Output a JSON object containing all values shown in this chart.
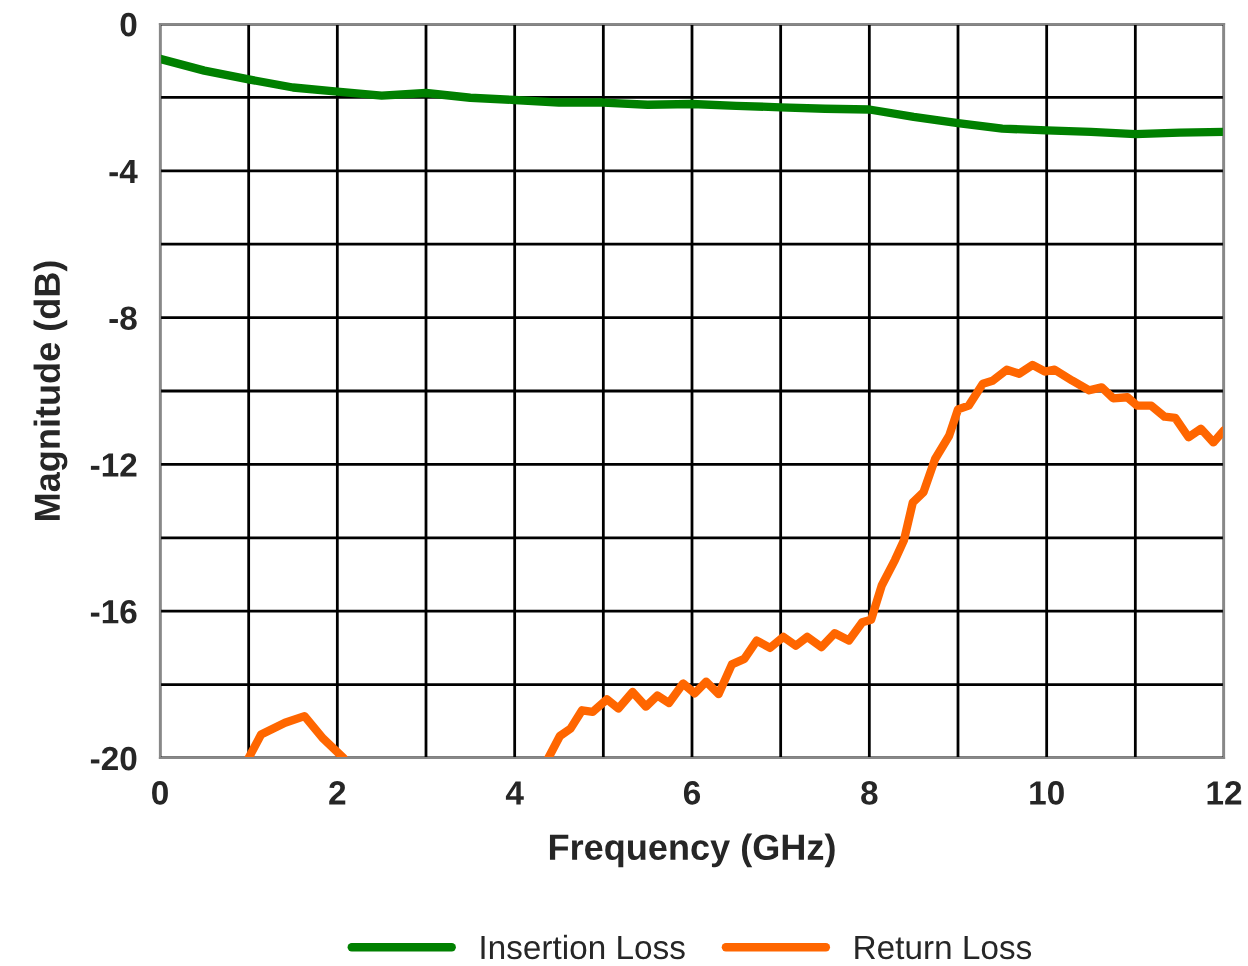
{
  "chart_data": {
    "type": "line",
    "xlabel": "Frequency (GHz)",
    "ylabel": "Magnitude (dB)",
    "xlim": [
      0,
      12
    ],
    "ylim": [
      -20,
      0
    ],
    "xticks": [
      0,
      {
        "value": 1,
        "label": null
      },
      2,
      {
        "value": 3,
        "label": null
      },
      4,
      {
        "value": 5,
        "label": null
      },
      6,
      {
        "value": 7,
        "label": null
      },
      8,
      {
        "value": 9,
        "label": null
      },
      10,
      {
        "value": 11,
        "label": null
      },
      12
    ],
    "yticks": [
      -20,
      {
        "value": -18,
        "label": null
      },
      -16,
      {
        "value": -14,
        "label": null
      },
      -12,
      {
        "value": -10,
        "label": null
      },
      -8,
      {
        "value": -6,
        "label": null
      },
      -4,
      {
        "value": -2,
        "label": null
      },
      0
    ],
    "grid": true,
    "legend": "bottom",
    "marker": "none",
    "line_style": "solid",
    "series": [
      {
        "name": "Insertion Loss",
        "color": "#008000",
        "x": [
          0,
          0.5,
          1,
          1.5,
          2,
          2.5,
          3,
          3.5,
          4,
          4.5,
          5,
          5.5,
          6,
          6.5,
          7,
          7.5,
          8,
          8.5,
          9,
          9.5,
          10,
          10.5,
          11,
          11.5,
          12
        ],
        "values": [
          -0.95,
          -1.27,
          -1.51,
          -1.73,
          -1.84,
          -1.95,
          -1.88,
          -2.01,
          -2.07,
          -2.14,
          -2.14,
          -2.2,
          -2.18,
          -2.23,
          -2.27,
          -2.31,
          -2.33,
          -2.53,
          -2.7,
          -2.85,
          -2.9,
          -2.94,
          -3.0,
          -2.96,
          -2.94
        ]
      },
      {
        "name": "Return Loss",
        "color": "#ff6600",
        "x": [
          1,
          1.14,
          1.41,
          1.63,
          1.84,
          2.07,
          3,
          4.38,
          4.51,
          4.63,
          4.76,
          4.88,
          5.04,
          5.17,
          5.33,
          5.48,
          5.61,
          5.74,
          5.9,
          6.03,
          6.16,
          6.3,
          6.45,
          6.59,
          6.73,
          6.88,
          7.03,
          7.17,
          7.3,
          7.46,
          7.61,
          7.77,
          7.92,
          8.02,
          8.14,
          8.29,
          8.39,
          8.49,
          8.61,
          8.74,
          8.9,
          9.0,
          9.12,
          9.28,
          9.39,
          9.55,
          9.69,
          9.84,
          9.98,
          10.09,
          10.29,
          10.48,
          10.62,
          10.75,
          10.91,
          11.02,
          11.18,
          11.33,
          11.45,
          11.6,
          11.74,
          11.88,
          12
        ],
        "values": [
          -20,
          -19.36,
          -19.04,
          -18.86,
          -19.47,
          -20,
          null,
          -20,
          -19.4,
          -19.2,
          -18.7,
          -18.74,
          -18.4,
          -18.65,
          -18.2,
          -18.6,
          -18.3,
          -18.5,
          -17.97,
          -18.24,
          -17.92,
          -18.26,
          -17.45,
          -17.3,
          -16.8,
          -17.0,
          -16.7,
          -16.94,
          -16.7,
          -16.98,
          -16.6,
          -16.8,
          -16.3,
          -16.23,
          -15.3,
          -14.6,
          -14.07,
          -13.04,
          -12.76,
          -11.86,
          -11.22,
          -10.5,
          -10.4,
          -9.8,
          -9.72,
          -9.42,
          -9.53,
          -9.29,
          -9.47,
          -9.42,
          -9.72,
          -9.98,
          -9.9,
          -10.2,
          -10.17,
          -10.4,
          -10.4,
          -10.7,
          -10.73,
          -11.26,
          -11.03,
          -11.4,
          -11.07
        ]
      }
    ]
  }
}
